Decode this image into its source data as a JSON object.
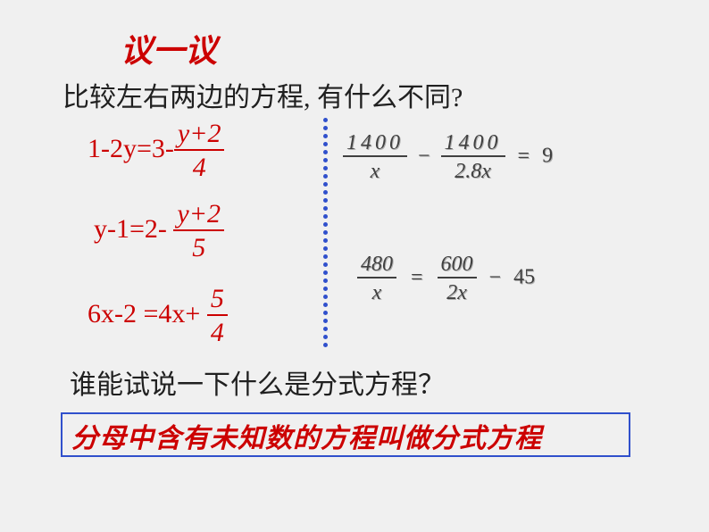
{
  "title": "议一议",
  "question": "比较左右两边的方程, 有什么不同?",
  "subQuestion": "谁能试说一下什么是分式方程？",
  "answer": "分母中含有未知数的方程叫做分式方程",
  "leftEquations": {
    "eq1": {
      "pre": "1-2y=3-",
      "num": "y+2",
      "den": "4"
    },
    "eq2": {
      "pre": "y-1=2-",
      "num": "y+2",
      "den": "5"
    },
    "eq3": {
      "pre": "6x-2 =4x+",
      "num": "5",
      "den": "4"
    }
  },
  "rightEquations": {
    "eq1": {
      "num1": "1400",
      "den1": "x",
      "op1": "−",
      "num2": "1400",
      "den2": "2.8x",
      "op2": "=",
      "rhs": "9"
    },
    "eq2": {
      "num1": "480",
      "den1": "x",
      "op1": "=",
      "num2": "600",
      "den2": "2x",
      "op2": "−",
      "rhs": "45"
    }
  },
  "colors": {
    "red": "#cc0000",
    "blue": "#3050cc",
    "text": "#202020",
    "bg": "#f0f0f0"
  },
  "divider_dot_count": 29,
  "fonts": {
    "cjk_heading": "KaiTi",
    "cjk_body": "SimSun",
    "math": "Times New Roman",
    "title_size_pt": 27,
    "body_size_pt": 22,
    "math_left_size_pt": 22,
    "math_right_size_pt": 18
  }
}
